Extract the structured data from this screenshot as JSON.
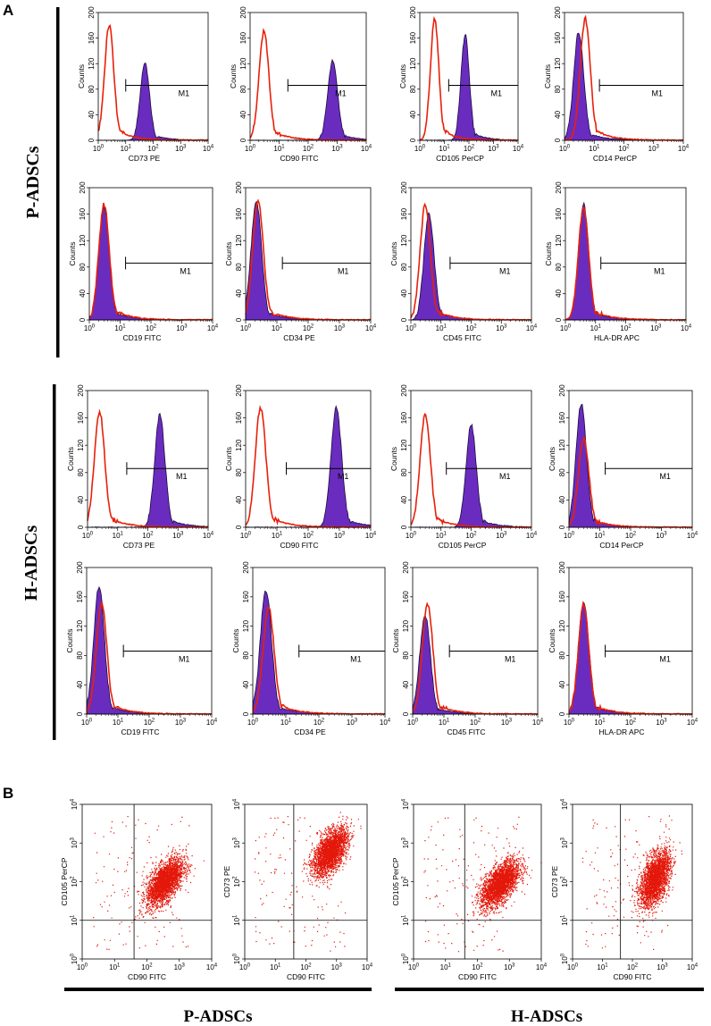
{
  "panel_labels": {
    "A": "A",
    "B": "B"
  },
  "group_labels": {
    "p": "P-ADSCs",
    "h": "H-ADSCs"
  },
  "colors": {
    "isotype": "#e8200a",
    "stained_fill": "#6a2cbe",
    "stained_edge": "#1a0a40",
    "dots": "#e3170a",
    "black": "#000000"
  },
  "chart_data": {
    "histogram_rows": [
      {
        "group": "P-ADSCs",
        "plots": [
          {
            "xlabel": "CD73 PE",
            "ylabel": "Counts",
            "ymax": 200,
            "yticks": [
              0,
              40,
              80,
              120,
              160,
              200
            ],
            "xdecades": [
              0,
              1,
              2,
              3,
              4
            ],
            "gate": "M1",
            "gate_range": [
              10,
              10000
            ],
            "iso_mode": 2.5,
            "iso_peak": 180,
            "stain_mode": 50,
            "stain_peak": 120
          },
          {
            "xlabel": "CD90 FITC",
            "ylabel": "Counts",
            "ymax": 200,
            "yticks": [
              0,
              40,
              80,
              120,
              160,
              200
            ],
            "xdecades": [
              0,
              1,
              2,
              3,
              4
            ],
            "gate": "M1",
            "gate_range": [
              20,
              10000
            ],
            "iso_mode": 3,
            "iso_peak": 170,
            "stain_mode": 700,
            "stain_peak": 125
          },
          {
            "xlabel": "CD105 PerCP",
            "ylabel": "Counts",
            "ymax": 200,
            "yticks": [
              0,
              40,
              80,
              120,
              160,
              200
            ],
            "xdecades": [
              0,
              1,
              2,
              3,
              4
            ],
            "gate": "M1",
            "gate_range": [
              15,
              10000
            ],
            "iso_mode": 4,
            "iso_peak": 190,
            "stain_mode": 70,
            "stain_peak": 165
          },
          {
            "xlabel": "CD14 PerCP",
            "ylabel": "Counts",
            "ymax": 200,
            "yticks": [
              0,
              40,
              80,
              120,
              160,
              200
            ],
            "xdecades": [
              0,
              1,
              2,
              3,
              4
            ],
            "gate": "M1",
            "gate_range": [
              15,
              10000
            ],
            "iso_mode": 5,
            "iso_peak": 190,
            "stain_mode": 3,
            "stain_peak": 170
          }
        ]
      },
      {
        "group": "P-ADSCs",
        "plots": [
          {
            "xlabel": "CD19 FITC",
            "ylabel": "Counts",
            "ymax": 200,
            "yticks": [
              0,
              40,
              80,
              120,
              160,
              200
            ],
            "xdecades": [
              0,
              1,
              2,
              3,
              4
            ],
            "gate": "M1",
            "gate_range": [
              15,
              10000
            ],
            "iso_mode": 3,
            "iso_peak": 175,
            "stain_mode": 3,
            "stain_peak": 170
          },
          {
            "xlabel": "CD34 PE",
            "ylabel": "Counts",
            "ymax": 200,
            "yticks": [
              0,
              40,
              80,
              120,
              160,
              200
            ],
            "xdecades": [
              0,
              1,
              2,
              3,
              4
            ],
            "gate": "M1",
            "gate_range": [
              15,
              10000
            ],
            "iso_mode": 2.5,
            "iso_peak": 180,
            "stain_mode": 2.2,
            "stain_peak": 180
          },
          {
            "xlabel": "CD45 FITC",
            "ylabel": "Counts",
            "ymax": 200,
            "yticks": [
              0,
              40,
              80,
              120,
              160,
              200
            ],
            "xdecades": [
              0,
              1,
              2,
              3,
              4
            ],
            "gate": "M1",
            "gate_range": [
              20,
              10000
            ],
            "iso_mode": 3,
            "iso_peak": 175,
            "stain_mode": 4,
            "stain_peak": 160
          },
          {
            "xlabel": "HLA-DR APC",
            "ylabel": "Counts",
            "ymax": 200,
            "yticks": [
              0,
              40,
              80,
              120,
              160,
              200
            ],
            "xdecades": [
              0,
              1,
              2,
              3,
              4
            ],
            "gate": "M1",
            "gate_range": [
              15,
              10000
            ],
            "iso_mode": 4,
            "iso_peak": 170,
            "stain_mode": 4,
            "stain_peak": 175
          }
        ]
      },
      {
        "group": "H-ADSCs",
        "plots": [
          {
            "xlabel": "CD73 PE",
            "ylabel": "Counts",
            "ymax": 200,
            "yticks": [
              0,
              40,
              80,
              120,
              160,
              200
            ],
            "xdecades": [
              0,
              1,
              2,
              3,
              4
            ],
            "gate": "M1",
            "gate_range": [
              20,
              10000
            ],
            "iso_mode": 2.5,
            "iso_peak": 170,
            "stain_mode": 250,
            "stain_peak": 165
          },
          {
            "xlabel": "CD90 FITC",
            "ylabel": "Counts",
            "ymax": 200,
            "yticks": [
              0,
              40,
              80,
              120,
              160,
              200
            ],
            "xdecades": [
              0,
              1,
              2,
              3,
              4
            ],
            "gate": "M1",
            "gate_range": [
              20,
              10000
            ],
            "iso_mode": 3,
            "iso_peak": 175,
            "stain_mode": 800,
            "stain_peak": 175
          },
          {
            "xlabel": "CD105 PerCP",
            "ylabel": "Counts",
            "ymax": 200,
            "yticks": [
              0,
              40,
              80,
              120,
              160,
              200
            ],
            "xdecades": [
              0,
              1,
              2,
              3,
              4
            ],
            "gate": "M1",
            "gate_range": [
              15,
              10000
            ],
            "iso_mode": 3,
            "iso_peak": 165,
            "stain_mode": 100,
            "stain_peak": 150
          },
          {
            "xlabel": "CD14 PerCP",
            "ylabel": "Counts",
            "ymax": 200,
            "yticks": [
              0,
              40,
              80,
              120,
              160,
              200
            ],
            "xdecades": [
              0,
              1,
              2,
              3,
              4
            ],
            "gate": "M1",
            "gate_range": [
              15,
              10000
            ],
            "iso_mode": 3,
            "iso_peak": 130,
            "stain_mode": 2.5,
            "stain_peak": 180
          }
        ]
      },
      {
        "group": "H-ADSCs",
        "plots": [
          {
            "xlabel": "CD19 FITC",
            "ylabel": "Counts",
            "ymax": 200,
            "yticks": [
              0,
              40,
              80,
              120,
              160,
              200
            ],
            "xdecades": [
              0,
              1,
              2,
              3,
              4
            ],
            "gate": "M1",
            "gate_range": [
              15,
              10000
            ],
            "iso_mode": 3,
            "iso_peak": 150,
            "stain_mode": 2.5,
            "stain_peak": 175
          },
          {
            "xlabel": "CD34 PE",
            "ylabel": "Counts",
            "ymax": 200,
            "yticks": [
              0,
              40,
              80,
              120,
              160,
              200
            ],
            "xdecades": [
              0,
              1,
              2,
              3,
              4
            ],
            "gate": "M1",
            "gate_range": [
              25,
              10000
            ],
            "iso_mode": 3,
            "iso_peak": 145,
            "stain_mode": 2.5,
            "stain_peak": 170
          },
          {
            "xlabel": "CD45 FITC",
            "ylabel": "Counts",
            "ymax": 200,
            "yticks": [
              0,
              40,
              80,
              120,
              160,
              200
            ],
            "xdecades": [
              0,
              1,
              2,
              3,
              4
            ],
            "gate": "M1",
            "gate_range": [
              15,
              10000
            ],
            "iso_mode": 3,
            "iso_peak": 150,
            "stain_mode": 2.5,
            "stain_peak": 135
          },
          {
            "xlabel": "HLA-DR APC",
            "ylabel": "Counts",
            "ymax": 200,
            "yticks": [
              0,
              40,
              80,
              120,
              160,
              200
            ],
            "xdecades": [
              0,
              1,
              2,
              3,
              4
            ],
            "gate": "M1",
            "gate_range": [
              15,
              10000
            ],
            "iso_mode": 3,
            "iso_peak": 150,
            "stain_mode": 3,
            "stain_peak": 155
          }
        ]
      }
    ],
    "scatter_plots": [
      {
        "group": "P-ADSCs",
        "xlabel": "CD90 FITC",
        "ylabel": "CD105 PerCP",
        "xdecades": [
          0,
          1,
          2,
          3,
          4
        ],
        "ydecades": [
          0,
          1,
          2,
          3,
          4
        ],
        "quad_x": 40,
        "quad_y": 10,
        "center": [
          350,
          100
        ],
        "spread": [
          0.28,
          0.3
        ],
        "corr": 0.6
      },
      {
        "group": "P-ADSCs",
        "xlabel": "CD90 FITC",
        "ylabel": "CD73 PE",
        "xdecades": [
          0,
          1,
          2,
          3,
          4
        ],
        "ydecades": [
          0,
          1,
          2,
          3,
          4
        ],
        "quad_x": 40,
        "quad_y": 10,
        "center": [
          600,
          600
        ],
        "spread": [
          0.28,
          0.3
        ],
        "corr": 0.55
      },
      {
        "group": "H-ADSCs",
        "xlabel": "CD90 FITC",
        "ylabel": "CD105 PerCP",
        "xdecades": [
          0,
          1,
          2,
          3,
          4
        ],
        "ydecades": [
          0,
          1,
          2,
          3,
          4
        ],
        "quad_x": 40,
        "quad_y": 10,
        "center": [
          500,
          90
        ],
        "spread": [
          0.3,
          0.3
        ],
        "corr": 0.6
      },
      {
        "group": "H-ADSCs",
        "xlabel": "CD90 FITC",
        "ylabel": "CD73 PE",
        "xdecades": [
          0,
          1,
          2,
          3,
          4
        ],
        "ydecades": [
          0,
          1,
          2,
          3,
          4
        ],
        "quad_x": 40,
        "quad_y": 10,
        "center": [
          550,
          120
        ],
        "spread": [
          0.25,
          0.35
        ],
        "corr": 0.5
      }
    ]
  }
}
